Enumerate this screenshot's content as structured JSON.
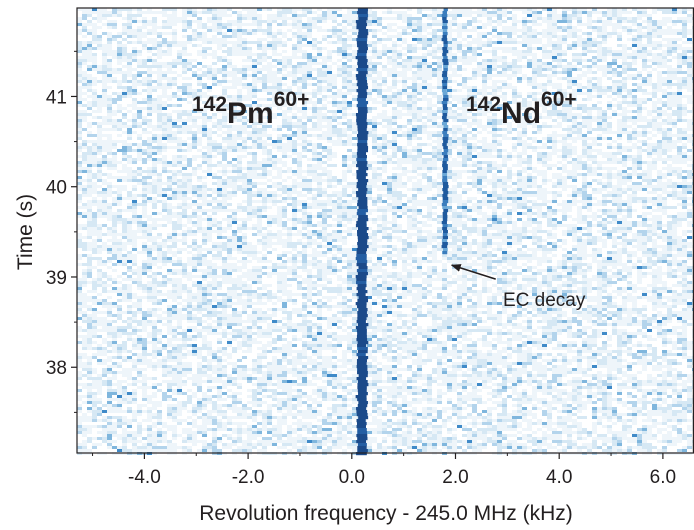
{
  "chart_data": {
    "type": "heatmap",
    "title": "",
    "xlabel": "Revolution frequency - 245.0 MHz (kHz)",
    "ylabel": "Time (s)",
    "xlim": [
      -5.3,
      6.6
    ],
    "ylim": [
      37.05,
      41.98
    ],
    "x_ticks": [
      -4.0,
      -2.0,
      0.0,
      2.0,
      4.0,
      6.0
    ],
    "x_tick_labels": [
      "-4.0",
      "-2.0",
      "0.0",
      "2.0",
      "4.0",
      "6.0"
    ],
    "y_ticks": [
      38,
      39,
      40,
      41
    ],
    "y_tick_labels": [
      "38",
      "39",
      "40",
      "41"
    ],
    "grid": false,
    "colormap": {
      "low": "#ffffff",
      "mid": "#9cc8e4",
      "high": "#1a4f8c"
    },
    "traces": [
      {
        "label_mass": "142",
        "label_element": "Pm",
        "label_charge": "60+",
        "frequency_khz": 0.2,
        "t_start": 37.05,
        "t_end": 41.98,
        "intensity": "high"
      },
      {
        "label_mass": "142",
        "label_element": "Nd",
        "label_charge": "60+",
        "frequency_khz": 1.8,
        "t_start": 39.28,
        "t_end": 41.98,
        "intensity": "medium"
      }
    ],
    "annotations": [
      {
        "text": "EC decay",
        "points_to": {
          "x": 1.85,
          "y": 39.12
        }
      }
    ]
  }
}
